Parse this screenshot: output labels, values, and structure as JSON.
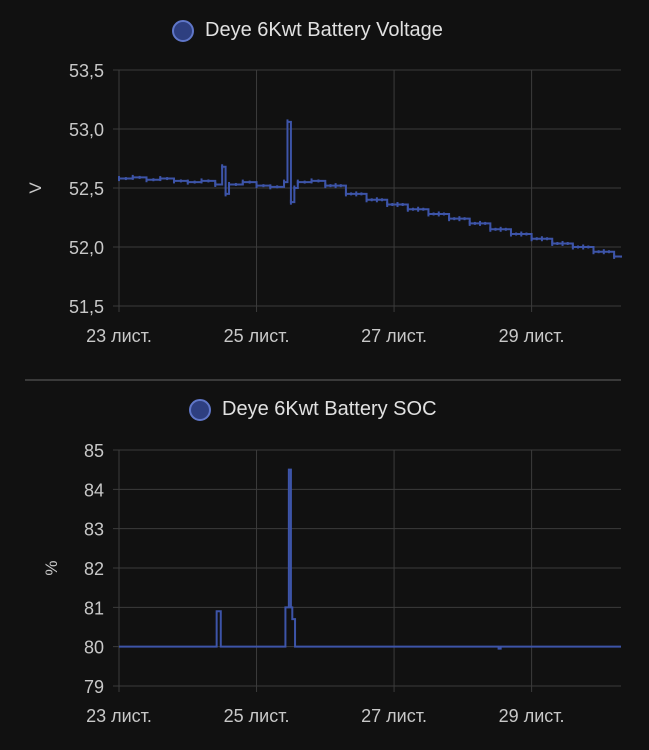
{
  "chart_data": [
    {
      "type": "line",
      "title": "",
      "series": [
        {
          "name": "Deye 6Kwt Battery Voltage",
          "x": [
            23.0,
            23.2,
            23.4,
            23.6,
            23.8,
            24.0,
            24.2,
            24.4,
            24.5,
            24.55,
            24.6,
            24.8,
            25.0,
            25.2,
            25.4,
            25.45,
            25.5,
            25.55,
            25.6,
            25.8,
            26.0,
            26.3,
            26.6,
            26.9,
            27.2,
            27.5,
            27.8,
            28.1,
            28.4,
            28.7,
            29.0,
            29.3,
            29.6,
            29.9,
            30.2,
            30.3
          ],
          "values": [
            52.58,
            52.59,
            52.57,
            52.58,
            52.56,
            52.55,
            52.56,
            52.53,
            52.68,
            52.45,
            52.53,
            52.55,
            52.52,
            52.51,
            52.55,
            53.06,
            52.38,
            52.5,
            52.55,
            52.56,
            52.52,
            52.45,
            52.4,
            52.36,
            52.32,
            52.28,
            52.24,
            52.2,
            52.15,
            52.11,
            52.07,
            52.03,
            52.0,
            51.96,
            51.92,
            51.91
          ]
        }
      ],
      "yticks": [
        "53,5",
        "53,0",
        "52,5",
        "52,0",
        "51,5"
      ],
      "ytick_values": [
        53.5,
        53.0,
        52.5,
        52.0,
        51.5
      ],
      "xticks": [
        "23 лист.",
        "25 лист.",
        "27 лист.",
        "29 лист."
      ],
      "xtick_values": [
        23,
        25,
        27,
        29
      ],
      "ylabel": "V",
      "ylim": [
        51.5,
        53.5
      ],
      "xlim": [
        23.0,
        30.3
      ],
      "grid": true,
      "legend": "top",
      "color": "#3d54a8"
    },
    {
      "type": "line",
      "title": "",
      "series": [
        {
          "name": "Deye 6Kwt Battery SOC",
          "x": [
            23.0,
            24.4,
            24.42,
            24.46,
            24.48,
            25.4,
            25.42,
            25.47,
            25.5,
            25.52,
            25.56,
            26.0,
            28.5,
            28.52,
            28.55,
            30.3
          ],
          "values": [
            80,
            80,
            80.9,
            80.9,
            80,
            80,
            81,
            84.5,
            81,
            80.7,
            80,
            80,
            80,
            79.95,
            80,
            80
          ]
        }
      ],
      "yticks": [
        "85",
        "84",
        "83",
        "82",
        "81",
        "80",
        "79"
      ],
      "ytick_values": [
        85,
        84,
        83,
        82,
        81,
        80,
        79
      ],
      "xticks": [
        "23 лист.",
        "25 лист.",
        "27 лист.",
        "29 лист."
      ],
      "xtick_values": [
        23,
        25,
        27,
        29
      ],
      "ylabel": "%",
      "ylim": [
        79,
        85
      ],
      "xlim": [
        23.0,
        30.3
      ],
      "grid": true,
      "legend": "top",
      "color": "#3d54a8"
    }
  ]
}
